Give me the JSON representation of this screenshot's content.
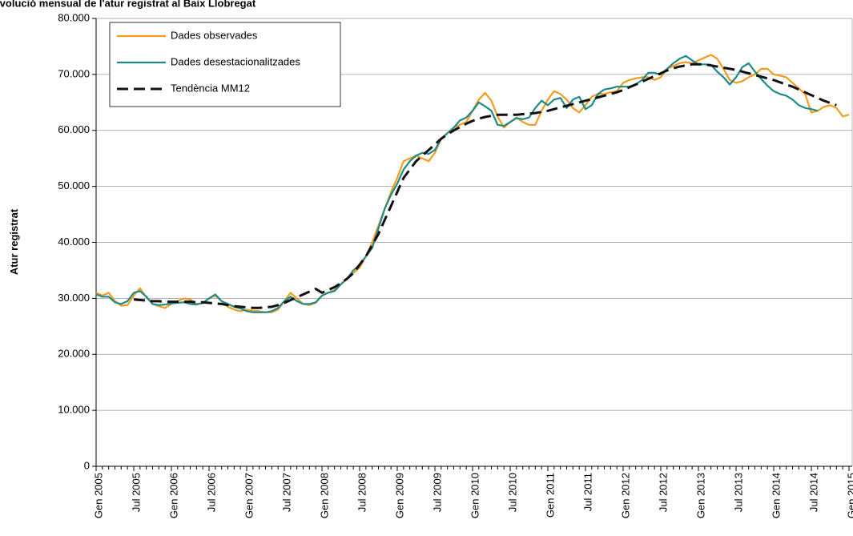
{
  "chart_data": {
    "type": "line",
    "title": "Evolució mensual de l'atur registrat al Baix Llobregat",
    "y_label": "Atur registrat",
    "categories": [
      "Gen 2005",
      null,
      null,
      null,
      null,
      null,
      "Jul 2005",
      null,
      null,
      null,
      null,
      null,
      "Gen 2006",
      null,
      null,
      null,
      null,
      null,
      "Jul 2006",
      null,
      null,
      null,
      null,
      null,
      "Gen 2007",
      null,
      null,
      null,
      null,
      null,
      "Jul 2007",
      null,
      null,
      null,
      null,
      null,
      "Gen 2008",
      null,
      null,
      null,
      null,
      null,
      "Jul 2008",
      null,
      null,
      null,
      null,
      null,
      "Gen 2009",
      null,
      null,
      null,
      null,
      null,
      "Jul 2009",
      null,
      null,
      null,
      null,
      null,
      "Gen 2010",
      null,
      null,
      null,
      null,
      null,
      "Jul 2010",
      null,
      null,
      null,
      null,
      null,
      "Gen 2011",
      null,
      null,
      null,
      null,
      null,
      "Jul 2011",
      null,
      null,
      null,
      null,
      null,
      "Gen 2012",
      null,
      null,
      null,
      null,
      null,
      "Jul 2012",
      null,
      null,
      null,
      null,
      null,
      "Gen 2013",
      null,
      null,
      null,
      null,
      null,
      "Jul 2013",
      null,
      null,
      null,
      null,
      null,
      "Gen 2014",
      null,
      null,
      null,
      null,
      null,
      "Jul 2014",
      null,
      null,
      null,
      null,
      null,
      "Gen 2015"
    ],
    "series": [
      {
        "name": "Dades observades",
        "color": "#f39c1e",
        "dash": false,
        "values": [
          31000,
          30500,
          31000,
          29500,
          28700,
          28800,
          30500,
          31800,
          30200,
          29000,
          28600,
          28300,
          29000,
          29500,
          30000,
          29800,
          29000,
          29100,
          30000,
          30500,
          29500,
          28500,
          28000,
          27700,
          28000,
          27800,
          27700,
          27500,
          27500,
          28000,
          29500,
          31000,
          30000,
          29000,
          28800,
          29200,
          30500,
          31000,
          31500,
          32500,
          33500,
          34500,
          35500,
          37500,
          40000,
          43000,
          46000,
          49000,
          51500,
          54500,
          55000,
          55500,
          55000,
          54500,
          56000,
          58500,
          59500,
          60500,
          61000,
          61500,
          63500,
          65500,
          66700,
          65300,
          62500,
          60500,
          61500,
          62300,
          61500,
          61000,
          61000,
          63500,
          65500,
          67000,
          66500,
          65500,
          64000,
          63200,
          64500,
          66000,
          66500,
          66500,
          66800,
          67000,
          68500,
          69000,
          69300,
          69500,
          69500,
          69000,
          69500,
          71000,
          71500,
          72000,
          72200,
          72000,
          72500,
          73000,
          73500,
          72800,
          71000,
          69000,
          68500,
          68800,
          69500,
          70000,
          71000,
          71000,
          70000,
          69800,
          69500,
          68500,
          67500,
          66500,
          63200,
          63500,
          64200,
          64500,
          64000,
          62500,
          62800
        ]
      },
      {
        "name": "Dades desestacionalitzades",
        "color": "#1f8a8a",
        "dash": false,
        "values": [
          30700,
          30300,
          30300,
          29300,
          29000,
          29500,
          31000,
          31300,
          30300,
          29000,
          28800,
          28900,
          29100,
          29200,
          29300,
          29000,
          28900,
          29200,
          30000,
          30700,
          29500,
          29000,
          28500,
          28200,
          27700,
          27500,
          27500,
          27500,
          27700,
          28300,
          29500,
          30300,
          29500,
          29000,
          29000,
          29300,
          30500,
          31000,
          31300,
          32500,
          33500,
          35000,
          36000,
          37500,
          39000,
          42500,
          46000,
          48500,
          50500,
          53000,
          54500,
          55500,
          56000,
          55800,
          56500,
          58500,
          59500,
          60500,
          61800,
          62300,
          63500,
          65000,
          64300,
          63500,
          61000,
          60800,
          61500,
          62200,
          62000,
          62300,
          64000,
          65300,
          64500,
          65500,
          65800,
          64000,
          65500,
          66000,
          63800,
          64500,
          66500,
          67300,
          67500,
          67800,
          67800,
          67800,
          68200,
          69000,
          70300,
          70300,
          70000,
          71000,
          72000,
          72800,
          73300,
          72500,
          71800,
          71800,
          71700,
          70500,
          69500,
          68200,
          69500,
          71300,
          72000,
          70500,
          69200,
          68000,
          67000,
          66500,
          66200,
          65500,
          64500,
          64000,
          63800,
          63500,
          null,
          null,
          null,
          null,
          null
        ]
      },
      {
        "name": "Tendència MM12",
        "color": "#111111",
        "dash": true,
        "values": [
          null,
          null,
          null,
          null,
          null,
          null,
          29800,
          29700,
          29600,
          29500,
          29500,
          29400,
          29400,
          29400,
          29400,
          29400,
          29300,
          29300,
          29200,
          29100,
          29000,
          28800,
          28600,
          28500,
          28400,
          28300,
          28300,
          28400,
          28500,
          28800,
          29200,
          29700,
          30200,
          30700,
          31200,
          31700,
          31000,
          31500,
          32000,
          32700,
          33500,
          34500,
          36000,
          37500,
          39500,
          41500,
          44000,
          46500,
          49000,
          51500,
          53000,
          54500,
          55500,
          56500,
          57500,
          58500,
          59300,
          60000,
          60600,
          61200,
          61700,
          62100,
          62400,
          62600,
          62800,
          62800,
          62800,
          62800,
          62900,
          63000,
          63100,
          63300,
          63500,
          63800,
          64100,
          64400,
          64700,
          65000,
          65300,
          65600,
          65900,
          66200,
          66500,
          66800,
          67200,
          67700,
          68200,
          68700,
          69200,
          69700,
          70200,
          70700,
          71100,
          71400,
          71600,
          71800,
          71800,
          71800,
          71600,
          71400,
          71200,
          71000,
          70800,
          70500,
          70200,
          69900,
          69600,
          69300,
          69000,
          68600,
          68200,
          67800,
          67300,
          66800,
          66300,
          65800,
          65300,
          64900,
          64500,
          null,
          null
        ]
      }
    ],
    "ylim": [
      0,
      80000
    ],
    "yticks": [
      0,
      {
        "value": 10000,
        "label": "10.000"
      },
      {
        "value": 20000,
        "label": "20.000"
      },
      {
        "value": 30000,
        "label": "30.000"
      },
      {
        "value": 40000,
        "label": "40.000"
      },
      {
        "value": 50000,
        "label": "50.000"
      },
      {
        "value": 60000,
        "label": "60.000"
      },
      {
        "value": 70000,
        "label": "70.000"
      },
      {
        "value": 80000,
        "label": "80.000"
      }
    ],
    "grid": true,
    "legend": "upper left"
  }
}
